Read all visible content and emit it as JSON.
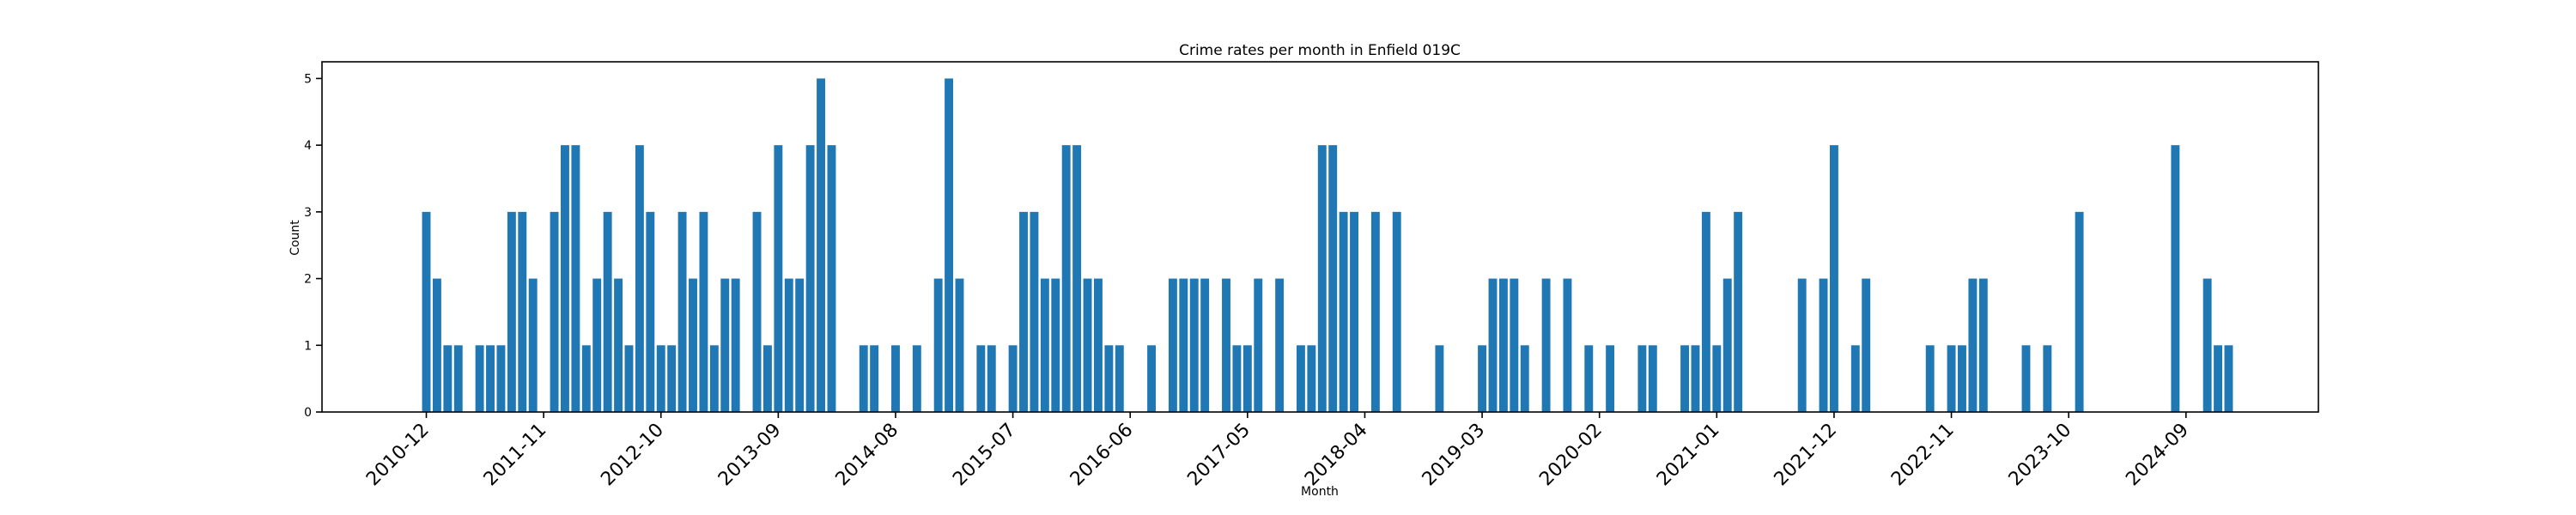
{
  "chart_data": {
    "type": "bar",
    "title": "Crime rates per month in Enfield 019C",
    "xlabel": "Month",
    "ylabel": "Count",
    "ylim": [
      0,
      5.25
    ],
    "yticks": [
      0,
      1,
      2,
      3,
      4,
      5
    ],
    "xticks": [
      "2010-12",
      "2011-11",
      "2012-10",
      "2013-09",
      "2014-08",
      "2015-07",
      "2016-06",
      "2017-05",
      "2018-04",
      "2019-03",
      "2020-02",
      "2021-01",
      "2021-12",
      "2022-11",
      "2023-10",
      "2024-09"
    ],
    "bar_color": "#1f77b4",
    "grid": false,
    "data": [
      [
        "2010-12",
        3
      ],
      [
        "2011-01",
        2
      ],
      [
        "2011-02",
        1
      ],
      [
        "2011-03",
        1
      ],
      [
        "2011-05",
        1
      ],
      [
        "2011-06",
        1
      ],
      [
        "2011-07",
        1
      ],
      [
        "2011-08",
        3
      ],
      [
        "2011-09",
        3
      ],
      [
        "2011-10",
        2
      ],
      [
        "2011-12",
        3
      ],
      [
        "2012-01",
        4
      ],
      [
        "2012-02",
        4
      ],
      [
        "2012-03",
        1
      ],
      [
        "2012-04",
        2
      ],
      [
        "2012-05",
        3
      ],
      [
        "2012-06",
        2
      ],
      [
        "2012-07",
        1
      ],
      [
        "2012-08",
        4
      ],
      [
        "2012-09",
        3
      ],
      [
        "2012-10",
        1
      ],
      [
        "2012-11",
        1
      ],
      [
        "2012-12",
        3
      ],
      [
        "2013-01",
        2
      ],
      [
        "2013-02",
        3
      ],
      [
        "2013-03",
        1
      ],
      [
        "2013-04",
        2
      ],
      [
        "2013-05",
        2
      ],
      [
        "2013-07",
        3
      ],
      [
        "2013-08",
        1
      ],
      [
        "2013-09",
        4
      ],
      [
        "2013-10",
        2
      ],
      [
        "2013-11",
        2
      ],
      [
        "2013-12",
        4
      ],
      [
        "2014-01",
        5
      ],
      [
        "2014-02",
        4
      ],
      [
        "2014-05",
        1
      ],
      [
        "2014-06",
        1
      ],
      [
        "2014-08",
        1
      ],
      [
        "2014-10",
        1
      ],
      [
        "2014-12",
        2
      ],
      [
        "2015-01",
        5
      ],
      [
        "2015-02",
        2
      ],
      [
        "2015-04",
        1
      ],
      [
        "2015-05",
        1
      ],
      [
        "2015-07",
        1
      ],
      [
        "2015-08",
        3
      ],
      [
        "2015-09",
        3
      ],
      [
        "2015-10",
        2
      ],
      [
        "2015-11",
        2
      ],
      [
        "2015-12",
        4
      ],
      [
        "2016-01",
        4
      ],
      [
        "2016-02",
        2
      ],
      [
        "2016-03",
        2
      ],
      [
        "2016-04",
        1
      ],
      [
        "2016-05",
        1
      ],
      [
        "2016-08",
        1
      ],
      [
        "2016-10",
        2
      ],
      [
        "2016-11",
        2
      ],
      [
        "2016-12",
        2
      ],
      [
        "2017-01",
        2
      ],
      [
        "2017-03",
        2
      ],
      [
        "2017-04",
        1
      ],
      [
        "2017-05",
        1
      ],
      [
        "2017-06",
        2
      ],
      [
        "2017-08",
        2
      ],
      [
        "2017-10",
        1
      ],
      [
        "2017-11",
        1
      ],
      [
        "2017-12",
        4
      ],
      [
        "2018-01",
        4
      ],
      [
        "2018-02",
        3
      ],
      [
        "2018-03",
        3
      ],
      [
        "2018-05",
        3
      ],
      [
        "2018-07",
        3
      ],
      [
        "2018-11",
        1
      ],
      [
        "2019-03",
        1
      ],
      [
        "2019-04",
        2
      ],
      [
        "2019-05",
        2
      ],
      [
        "2019-06",
        2
      ],
      [
        "2019-07",
        1
      ],
      [
        "2019-09",
        2
      ],
      [
        "2019-11",
        2
      ],
      [
        "2020-01",
        1
      ],
      [
        "2020-03",
        1
      ],
      [
        "2020-06",
        1
      ],
      [
        "2020-07",
        1
      ],
      [
        "2020-10",
        1
      ],
      [
        "2020-11",
        1
      ],
      [
        "2020-12",
        3
      ],
      [
        "2021-01",
        1
      ],
      [
        "2021-02",
        2
      ],
      [
        "2021-03",
        3
      ],
      [
        "2021-09",
        2
      ],
      [
        "2021-11",
        2
      ],
      [
        "2021-12",
        4
      ],
      [
        "2022-02",
        1
      ],
      [
        "2022-03",
        2
      ],
      [
        "2022-09",
        1
      ],
      [
        "2022-11",
        1
      ],
      [
        "2022-12",
        1
      ],
      [
        "2023-01",
        2
      ],
      [
        "2023-02",
        2
      ],
      [
        "2023-06",
        1
      ],
      [
        "2023-08",
        1
      ],
      [
        "2023-11",
        3
      ],
      [
        "2024-08",
        4
      ],
      [
        "2024-11",
        2
      ],
      [
        "2024-12",
        1
      ],
      [
        "2025-01",
        1
      ]
    ]
  }
}
